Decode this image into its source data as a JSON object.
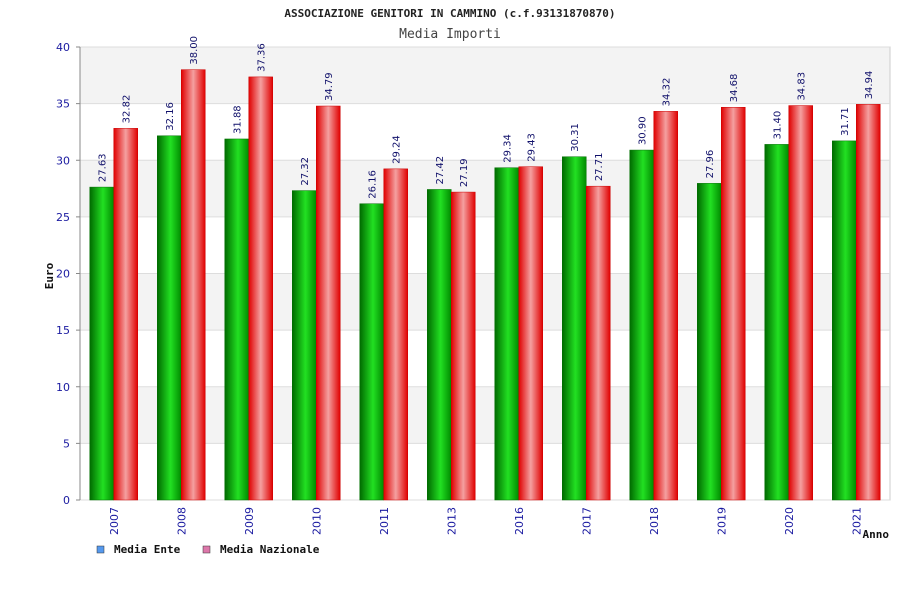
{
  "chart_data": {
    "type": "bar",
    "title": "ASSOCIAZIONE GENITORI IN CAMMINO (c.f.93131870870)",
    "subtitle": "Media Importi",
    "xlabel": "Anno",
    "ylabel": "Euro",
    "ylim": [
      0,
      40
    ],
    "yticks": [
      "0",
      "5",
      "10",
      "15",
      "20",
      "25",
      "30",
      "35",
      "40"
    ],
    "categories": [
      "2007",
      "2008",
      "2009",
      "2010",
      "2011",
      "2013",
      "2016",
      "2017",
      "2018",
      "2019",
      "2020",
      "2021"
    ],
    "series": [
      {
        "name": "Media Ente",
        "color": "#00a000",
        "legend_color": "#5599ee",
        "values": [
          27.63,
          32.16,
          31.88,
          27.32,
          26.16,
          27.42,
          29.34,
          30.31,
          30.9,
          27.96,
          31.4,
          31.71
        ],
        "labels": [
          "27.63",
          "32.16",
          "31.88",
          "27.32",
          "26.16",
          "27.42",
          "29.34",
          "30.31",
          "30.90",
          "27.96",
          "31.40",
          "31.71"
        ]
      },
      {
        "name": "Media Nazionale",
        "color": "#ee1111",
        "legend_color": "#dd77aa",
        "values": [
          32.82,
          38.0,
          37.36,
          34.79,
          29.24,
          27.19,
          29.43,
          27.71,
          34.32,
          34.68,
          34.83,
          34.94
        ],
        "labels": [
          "32.82",
          "38.00",
          "37.36",
          "34.79",
          "29.24",
          "27.19",
          "29.43",
          "27.71",
          "34.32",
          "34.68",
          "34.83",
          "34.94"
        ]
      }
    ],
    "grid": true,
    "legend": "bottom-left"
  }
}
